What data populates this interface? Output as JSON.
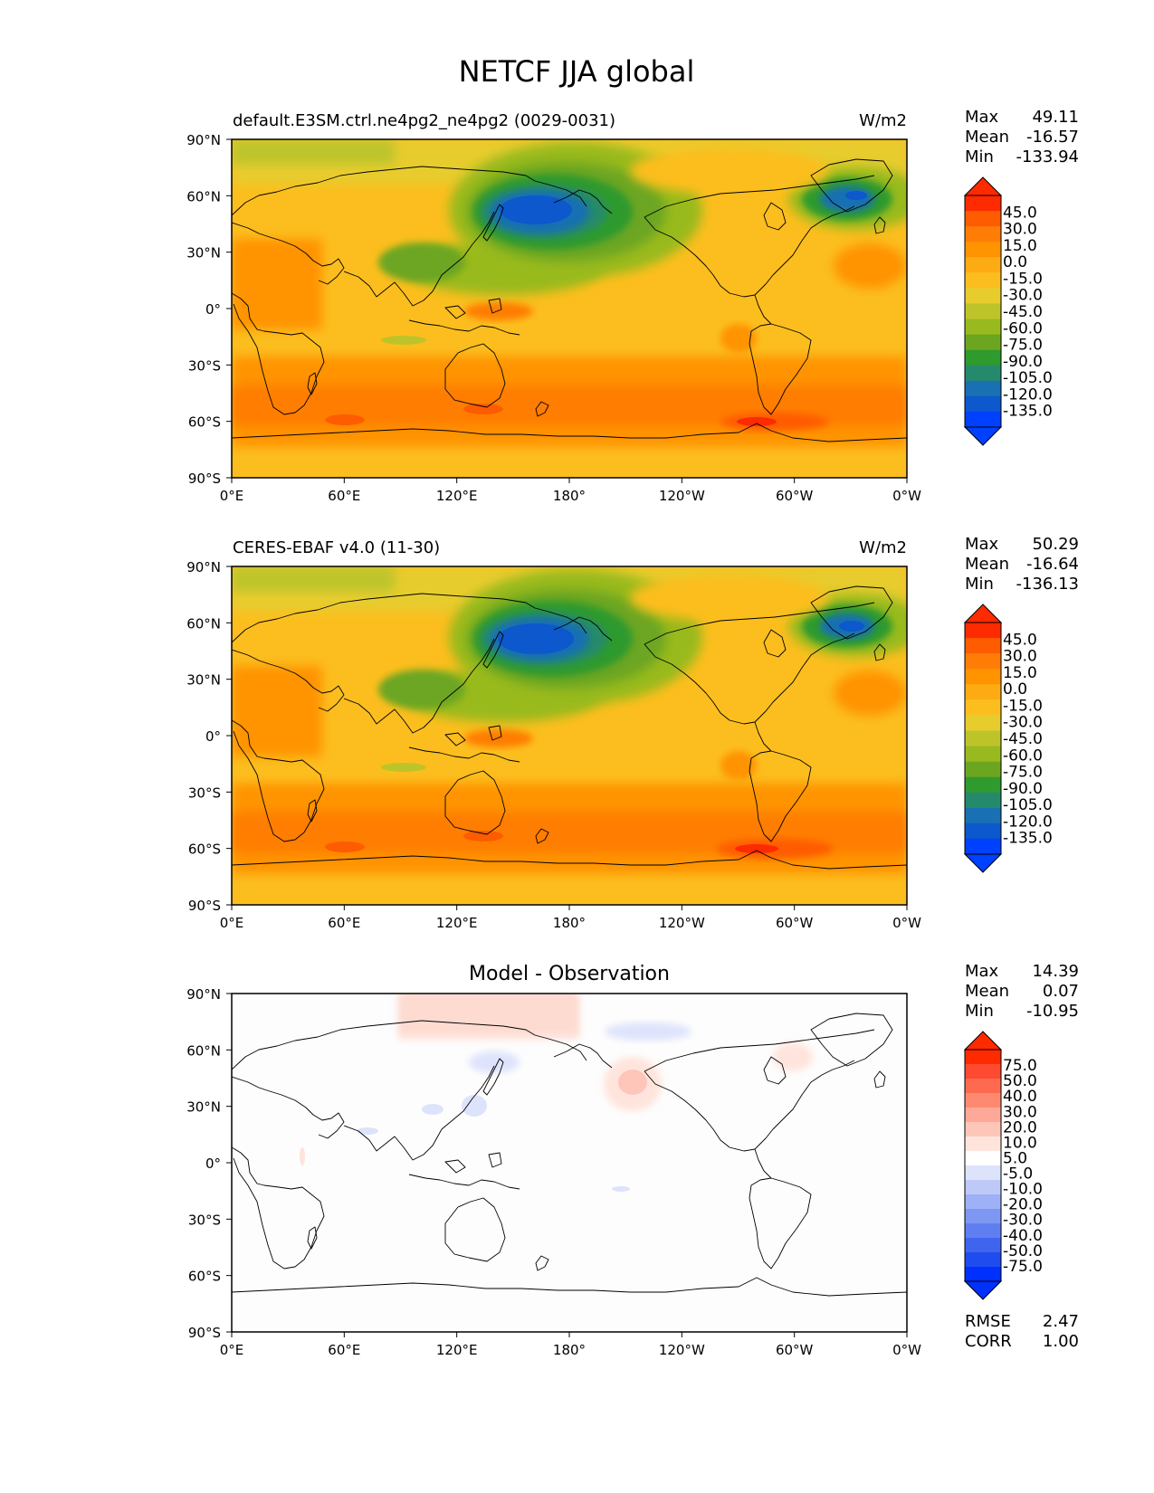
{
  "figure": {
    "title": "NETCF JJA global"
  },
  "axes": {
    "lat_ticks": [
      "90°N",
      "60°N",
      "30°N",
      "0°",
      "30°S",
      "60°S",
      "90°S"
    ],
    "lon_ticks": [
      "0°E",
      "60°E",
      "120°E",
      "180°",
      "120°W",
      "60°W",
      "0°W"
    ]
  },
  "panels": [
    {
      "id": "test",
      "title_left": "default.E3SM.ctrl.ne4pg2_ne4pg2 (0029-0031)",
      "title_center": "",
      "units": "W/m2",
      "stats": [
        {
          "label": "Max",
          "value": "49.11"
        },
        {
          "label": "Mean",
          "value": "-16.57"
        },
        {
          "label": "Min",
          "value": "-133.94"
        }
      ],
      "colorbar": {
        "labels": [
          "45.0",
          "30.0",
          "15.0",
          "0.0",
          "-15.0",
          "-30.0",
          "-45.0",
          "-60.0",
          "-75.0",
          "-90.0",
          "-105.0",
          "-120.0",
          "-135.0"
        ],
        "colors": [
          "#fe2a00",
          "#fe5c00",
          "#ff7d06",
          "#ff9300",
          "#fcac12",
          "#fcbe1e",
          "#e7cc2e",
          "#bdc429",
          "#99ba1f",
          "#6ca620",
          "#2f9a2d",
          "#258a6b",
          "#1970b2",
          "#0c58cc",
          "#0040ff"
        ],
        "top_color": "#fe2a00",
        "bottom_color": "#0040ff"
      },
      "metrics": []
    },
    {
      "id": "reference",
      "title_left": "CERES-EBAF v4.0 (11-30)",
      "title_center": "",
      "units": "W/m2",
      "stats": [
        {
          "label": "Max",
          "value": "50.29"
        },
        {
          "label": "Mean",
          "value": "-16.64"
        },
        {
          "label": "Min",
          "value": "-136.13"
        }
      ],
      "colorbar": {
        "labels": [
          "45.0",
          "30.0",
          "15.0",
          "0.0",
          "-15.0",
          "-30.0",
          "-45.0",
          "-60.0",
          "-75.0",
          "-90.0",
          "-105.0",
          "-120.0",
          "-135.0"
        ],
        "colors": [
          "#fe2a00",
          "#fe5c00",
          "#ff7d06",
          "#ff9300",
          "#fcac12",
          "#fcbe1e",
          "#e7cc2e",
          "#bdc429",
          "#99ba1f",
          "#6ca620",
          "#2f9a2d",
          "#258a6b",
          "#1970b2",
          "#0c58cc",
          "#0040ff"
        ],
        "top_color": "#fe2a00",
        "bottom_color": "#0040ff"
      },
      "metrics": []
    },
    {
      "id": "diff",
      "title_left": "",
      "title_center": "Model - Observation",
      "units": "",
      "stats": [
        {
          "label": "Max",
          "value": "14.39"
        },
        {
          "label": "Mean",
          "value": "0.07"
        },
        {
          "label": "Min",
          "value": "-10.95"
        }
      ],
      "colorbar": {
        "labels": [
          "75.0",
          "50.0",
          "40.0",
          "30.0",
          "20.0",
          "10.0",
          "5.0",
          "-5.0",
          "-10.0",
          "-20.0",
          "-30.0",
          "-40.0",
          "-50.0",
          "-75.0"
        ],
        "colors": [
          "#fe2a00",
          "#fe4a30",
          "#fd6a50",
          "#fd8a70",
          "#fea898",
          "#fec6b8",
          "#fee4dc",
          "#ffffff",
          "#dde3fb",
          "#bec9f8",
          "#9eb0f6",
          "#7e97f3",
          "#5f7ef1",
          "#3f65ef",
          "#1f4cee",
          "#0030fe"
        ],
        "top_color": "#fe2a00",
        "bottom_color": "#0030fe"
      },
      "metrics": [
        {
          "label": "RMSE",
          "value": "2.47"
        },
        {
          "label": "CORR",
          "value": "1.00"
        }
      ]
    }
  ]
}
